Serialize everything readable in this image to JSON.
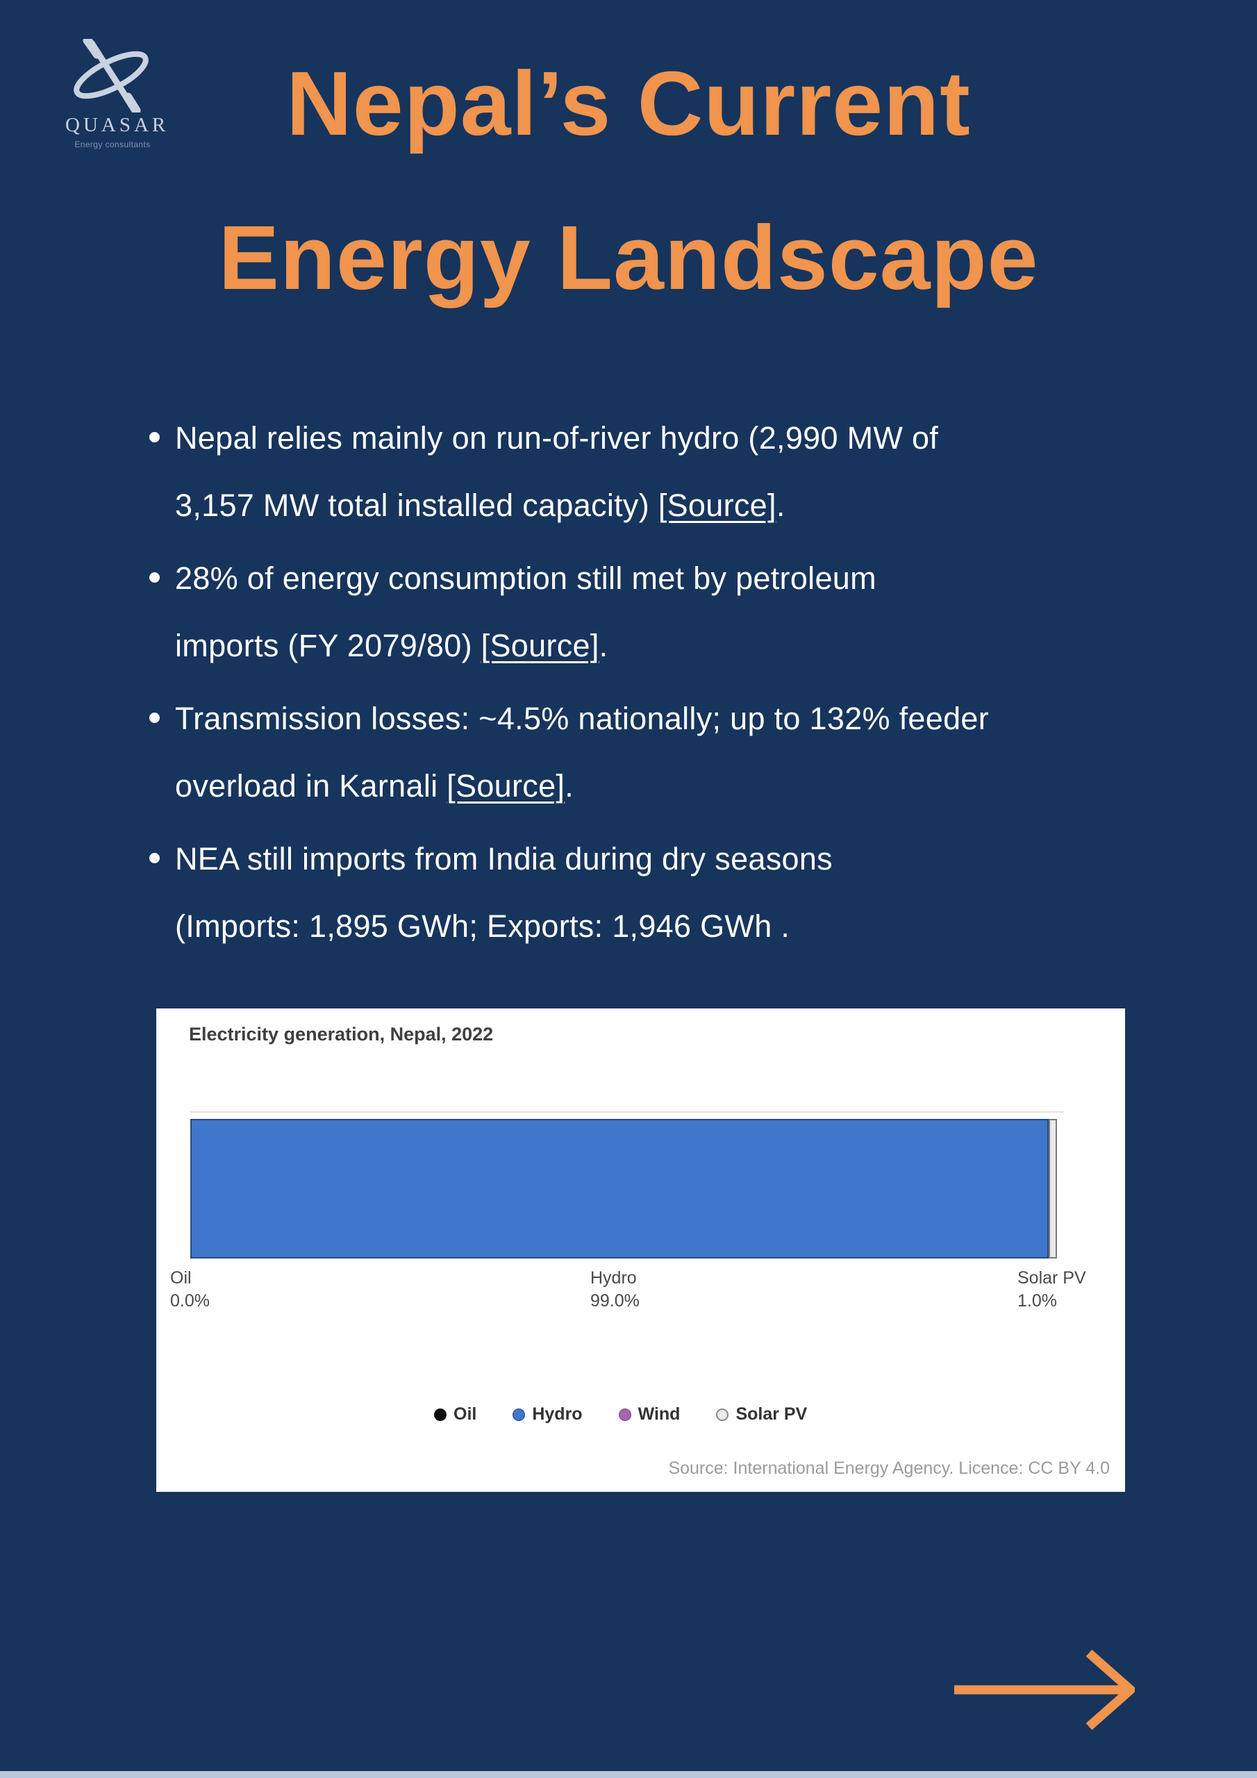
{
  "logo": {
    "name": "QUASAR",
    "tagline": "Energy consultants"
  },
  "title": {
    "line1": "Nepal’s Current",
    "line2": "Energy Landscape"
  },
  "bullets": [
    {
      "l1_pre": "Nepal relies mainly on run-of-river hydro (2,990 MW of",
      "l1_src": "",
      "l1_post": "",
      "l2_pre": "3,157 MW total installed capacity) ",
      "l2_src": "[Source]",
      "l2_post": "."
    },
    {
      "l1_pre": "28% of energy consumption still met by petroleum",
      "l1_src": "",
      "l1_post": "",
      "l2_pre": "imports (FY 2079/80) ",
      "l2_src": "[Source]",
      "l2_post": "."
    },
    {
      "l1_pre": "Transmission losses: ~4.5% nationally; up to 132% feeder",
      "l1_src": "",
      "l1_post": "",
      "l2_pre": "overload in Karnali ",
      "l2_src": "[Source]",
      "l2_post": "."
    },
    {
      "l1_pre": "NEA still imports from India during dry seasons",
      "l1_src": "",
      "l1_post": "",
      "l2_pre": "(Imports: 1,895 GWh; Exports: 1,946 GWh .",
      "l2_src": "",
      "l2_post": ""
    }
  ],
  "chart": {
    "axis_labels": [
      {
        "name": "Oil",
        "value": "0.0%"
      },
      {
        "name": "Hydro",
        "value": "99.0%"
      },
      {
        "name": "Solar PV",
        "value": "1.0%"
      }
    ]
  },
  "chart_data": {
    "type": "bar",
    "orientation": "horizontal-stacked",
    "title": "Electricity generation, Nepal, 2022",
    "unit": "% of generation",
    "categories": [
      "Oil",
      "Hydro",
      "Wind",
      "Solar PV"
    ],
    "series": [
      {
        "name": "Oil",
        "value": 0.0,
        "color": "#0D0D0D"
      },
      {
        "name": "Hydro",
        "value": 99.0,
        "color": "#4176CD"
      },
      {
        "name": "Wind",
        "value": 0.0,
        "color": "#A963AD"
      },
      {
        "name": "Solar PV",
        "value": 1.0,
        "color": "#ECECEC"
      }
    ],
    "legend_position": "bottom-center",
    "source": "Source: International Energy Agency. Licence: CC BY 4.0"
  },
  "colors": {
    "background_navy": "#17345C",
    "accent_orange": "#F0944E",
    "body_text": "#FFFFFF",
    "logo_light": "#C9D2E0",
    "footer_strip": "#B9C7DA",
    "hydro_blue": "#4176CD",
    "wind_purple": "#A963AD",
    "solar_gray": "#ECECEC",
    "oil_black": "#0D0D0D"
  }
}
